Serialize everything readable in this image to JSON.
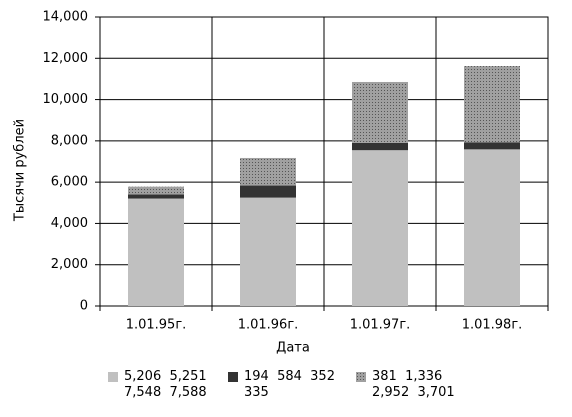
{
  "chart_data": {
    "type": "bar",
    "stacked": true,
    "x_label": "Дата",
    "y_label": "Тысячи рублей",
    "categories": [
      "1.01.95г.",
      "1.01.96г.",
      "1.01.97г.",
      "1.01.98г."
    ],
    "series": [
      {
        "name": "5,206  5,251 7,548  7,588",
        "color": "#c0c0c0",
        "values": [
          5206,
          5251,
          7548,
          7588
        ]
      },
      {
        "name": "194  584  352 335",
        "color": "#333333",
        "values": [
          194,
          584,
          352,
          335
        ]
      },
      {
        "name": "381  1,336 2,952  3,701",
        "color": "#969696",
        "values": [
          381,
          1336,
          2952,
          3701
        ]
      }
    ],
    "ylim": [
      0,
      14000
    ],
    "yticks": [
      0,
      {
        "value": 2000,
        "label": "2,000"
      },
      {
        "value": 4000,
        "label": "4,000"
      },
      {
        "value": 6000,
        "label": "6,000"
      },
      {
        "value": 8000,
        "label": "8,000"
      },
      {
        "value": 10000,
        "label": "10,000"
      },
      {
        "value": 12000,
        "label": "12,000"
      },
      {
        "value": 14000,
        "label": "14,000"
      }
    ],
    "grid": true
  }
}
